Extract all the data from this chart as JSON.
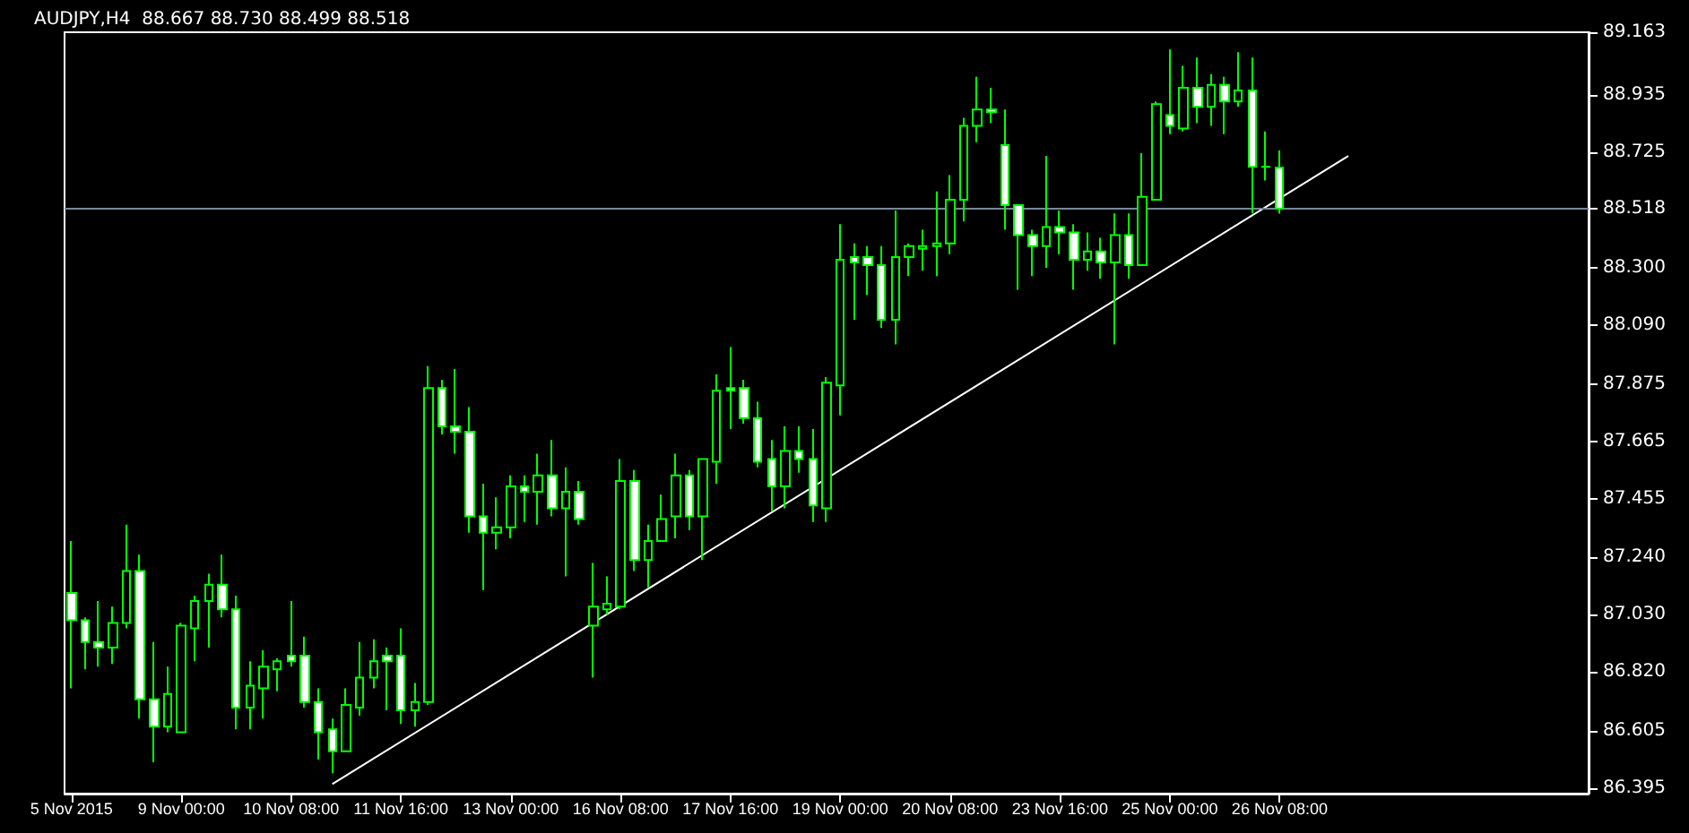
{
  "chart_data": {
    "type": "candlestick",
    "title": "AUDJPY,H4  88.667 88.730 88.499 88.518",
    "categories": [
      "5 Nov 2015",
      null,
      null,
      null,
      null,
      null,
      null,
      null,
      "9 Nov 00:00",
      null,
      null,
      null,
      null,
      null,
      null,
      null,
      "10 Nov 08:00",
      null,
      null,
      null,
      null,
      null,
      null,
      null,
      "11 Nov 16:00",
      null,
      null,
      null,
      null,
      null,
      null,
      null,
      "13 Nov 00:00",
      null,
      null,
      null,
      null,
      null,
      null,
      null,
      "16 Nov 08:00",
      null,
      null,
      null,
      null,
      null,
      null,
      null,
      "17 Nov 16:00",
      null,
      null,
      null,
      null,
      null,
      null,
      null,
      "19 Nov 00:00",
      null,
      null,
      null,
      null,
      null,
      null,
      null,
      "20 Nov 08:00",
      null,
      null,
      null,
      null,
      null,
      null,
      null,
      "23 Nov 16:00",
      null,
      null,
      null,
      null,
      null,
      null,
      null,
      "25 Nov 00:00",
      null,
      null,
      null,
      null,
      null,
      null,
      null,
      "26 Nov 08:00",
      null,
      null,
      null,
      null,
      null,
      null,
      null,
      null,
      null,
      null,
      null,
      null,
      null,
      null,
      null,
      null,
      null,
      null,
      null,
      null,
      null,
      null
    ],
    "series": [
      {
        "type": "candlestick",
        "color": "#00ff00",
        "ohlc": [
          [
            87.11,
            87.3,
            86.76,
            87.01
          ],
          [
            87.01,
            87.02,
            86.83,
            86.93
          ],
          [
            86.93,
            87.08,
            86.84,
            86.91
          ],
          [
            86.91,
            87.06,
            86.85,
            87.0
          ],
          [
            87.0,
            87.36,
            86.98,
            87.19
          ],
          [
            87.19,
            87.25,
            86.65,
            86.72
          ],
          [
            86.72,
            86.93,
            86.49,
            86.62
          ],
          [
            86.62,
            86.84,
            86.6,
            86.74
          ],
          [
            86.6,
            87.0,
            86.6,
            86.99
          ],
          [
            86.98,
            87.1,
            86.86,
            87.08
          ],
          [
            87.08,
            87.18,
            86.91,
            87.14
          ],
          [
            87.14,
            87.25,
            87.02,
            87.05
          ],
          [
            87.05,
            87.1,
            86.61,
            86.69
          ],
          [
            86.69,
            86.86,
            86.61,
            86.77
          ],
          [
            86.76,
            86.9,
            86.65,
            86.84
          ],
          [
            86.83,
            86.87,
            86.75,
            86.86
          ],
          [
            86.88,
            87.08,
            86.84,
            86.86
          ],
          [
            86.88,
            86.95,
            86.69,
            86.71
          ],
          [
            86.71,
            86.76,
            86.5,
            86.6
          ],
          [
            86.61,
            86.65,
            86.45,
            86.53
          ],
          [
            86.53,
            86.76,
            86.53,
            86.7
          ],
          [
            86.69,
            86.93,
            86.66,
            86.8
          ],
          [
            86.8,
            86.94,
            86.76,
            86.86
          ],
          [
            86.88,
            86.91,
            86.68,
            86.86
          ],
          [
            86.88,
            86.98,
            86.63,
            86.68
          ],
          [
            86.68,
            86.78,
            86.62,
            86.71
          ],
          [
            86.71,
            87.94,
            86.7,
            87.86
          ],
          [
            87.86,
            87.89,
            87.69,
            87.72
          ],
          [
            87.72,
            87.93,
            87.62,
            87.7
          ],
          [
            87.7,
            87.79,
            87.33,
            87.39
          ],
          [
            87.39,
            87.51,
            87.12,
            87.33
          ],
          [
            87.33,
            87.46,
            87.27,
            87.35
          ],
          [
            87.35,
            87.54,
            87.31,
            87.5
          ],
          [
            87.5,
            87.54,
            87.37,
            87.48
          ],
          [
            87.48,
            87.62,
            87.36,
            87.54
          ],
          [
            87.54,
            87.67,
            87.39,
            87.42
          ],
          [
            87.42,
            87.57,
            87.17,
            87.48
          ],
          [
            87.48,
            87.52,
            87.36,
            87.38
          ],
          [
            86.99,
            87.22,
            86.8,
            87.06
          ],
          [
            87.05,
            87.17,
            87.03,
            87.07
          ],
          [
            87.06,
            87.6,
            87.05,
            87.52
          ],
          [
            87.52,
            87.56,
            87.19,
            87.23
          ],
          [
            87.23,
            87.36,
            87.13,
            87.3
          ],
          [
            87.3,
            87.47,
            87.3,
            87.38
          ],
          [
            87.39,
            87.62,
            87.31,
            87.54
          ],
          [
            87.54,
            87.56,
            87.34,
            87.39
          ],
          [
            87.39,
            87.6,
            87.23,
            87.6
          ],
          [
            87.59,
            87.91,
            87.51,
            87.85
          ],
          [
            87.86,
            88.01,
            87.71,
            87.85
          ],
          [
            87.86,
            87.89,
            87.73,
            87.75
          ],
          [
            87.75,
            87.81,
            87.57,
            87.59
          ],
          [
            87.6,
            87.67,
            87.41,
            87.5
          ],
          [
            87.5,
            87.72,
            87.42,
            87.63
          ],
          [
            87.63,
            87.72,
            87.55,
            87.6
          ],
          [
            87.6,
            87.71,
            87.37,
            87.43
          ],
          [
            87.42,
            87.9,
            87.37,
            87.88
          ],
          [
            87.87,
            88.46,
            87.76,
            88.33
          ],
          [
            88.34,
            88.39,
            88.11,
            88.32
          ],
          [
            88.34,
            88.38,
            88.2,
            88.31
          ],
          [
            88.31,
            88.38,
            88.08,
            88.11
          ],
          [
            88.11,
            88.51,
            88.02,
            88.34
          ],
          [
            88.34,
            88.39,
            88.27,
            88.38
          ],
          [
            88.37,
            88.44,
            88.29,
            88.38
          ],
          [
            88.38,
            88.58,
            88.27,
            88.39
          ],
          [
            88.39,
            88.64,
            88.35,
            88.55
          ],
          [
            88.55,
            88.85,
            88.47,
            88.82
          ],
          [
            88.82,
            89.0,
            88.76,
            88.88
          ],
          [
            88.88,
            88.96,
            88.83,
            88.87
          ],
          [
            88.75,
            88.88,
            88.44,
            88.53
          ],
          [
            88.53,
            88.53,
            88.22,
            88.42
          ],
          [
            88.42,
            88.44,
            88.27,
            88.38
          ],
          [
            88.38,
            88.71,
            88.3,
            88.45
          ],
          [
            88.45,
            88.51,
            88.35,
            88.43
          ],
          [
            88.43,
            88.46,
            88.22,
            88.33
          ],
          [
            88.33,
            88.43,
            88.29,
            88.36
          ],
          [
            88.36,
            88.41,
            88.26,
            88.32
          ],
          [
            88.32,
            88.5,
            88.02,
            88.42
          ],
          [
            88.42,
            88.5,
            88.26,
            88.31
          ],
          [
            88.31,
            88.72,
            88.31,
            88.56
          ],
          [
            88.55,
            88.91,
            88.55,
            88.9
          ],
          [
            88.86,
            89.1,
            88.79,
            88.82
          ],
          [
            88.81,
            89.04,
            88.8,
            88.96
          ],
          [
            88.96,
            89.07,
            88.83,
            88.89
          ],
          [
            88.89,
            89.01,
            88.82,
            88.97
          ],
          [
            88.97,
            89.0,
            88.79,
            88.91
          ],
          [
            88.91,
            89.09,
            88.89,
            88.95
          ],
          [
            88.95,
            89.07,
            88.5,
            88.67
          ],
          [
            88.67,
            88.8,
            88.62,
            88.67
          ],
          [
            88.667,
            88.73,
            88.499,
            88.518
          ],
          null,
          null,
          null,
          null,
          null,
          null,
          null,
          null,
          null,
          null,
          null,
          null,
          null,
          null,
          null,
          null,
          null,
          null,
          null,
          null,
          null,
          null
        ]
      },
      {
        "type": "line",
        "color": "#ffffff",
        "values": [
          null,
          null,
          null,
          null,
          null,
          null,
          null,
          null,
          null,
          null,
          null,
          null,
          null,
          null,
          null,
          null,
          null,
          null,
          null,
          86.41,
          null,
          null,
          null,
          null,
          null,
          null,
          null,
          null,
          null,
          null,
          null,
          null,
          null,
          null,
          null,
          null,
          null,
          null,
          null,
          null,
          null,
          null,
          null,
          null,
          null,
          null,
          null,
          null,
          null,
          null,
          null,
          null,
          null,
          null,
          null,
          null,
          null,
          null,
          null,
          null,
          null,
          null,
          null,
          null,
          null,
          null,
          null,
          null,
          null,
          null,
          null,
          null,
          null,
          null,
          null,
          null,
          null,
          null,
          null,
          null,
          null,
          null,
          null,
          null,
          null,
          null,
          null,
          null,
          null,
          null,
          null,
          null,
          null,
          88.71,
          null,
          null,
          null,
          null,
          null,
          null,
          null,
          null,
          null,
          null,
          null,
          null,
          null,
          null,
          null,
          null,
          null
        ]
      }
    ],
    "ylim": [
      86.375,
      89.163
    ],
    "yticks": [
      86.395,
      86.605,
      {
        "value": 86.82,
        "label": "86.820"
      },
      {
        "value": 87.03,
        "label": "87.030"
      },
      {
        "value": 87.24,
        "label": "87.240"
      },
      87.455,
      87.665,
      87.875,
      {
        "value": 88.09,
        "label": "88.090"
      },
      {
        "value": 88.3,
        "label": "88.300"
      },
      88.518,
      88.725,
      88.935,
      89.163
    ],
    "ref_lines": [
      {
        "axis": "y",
        "value": 88.518,
        "color": "#778899"
      }
    ]
  }
}
